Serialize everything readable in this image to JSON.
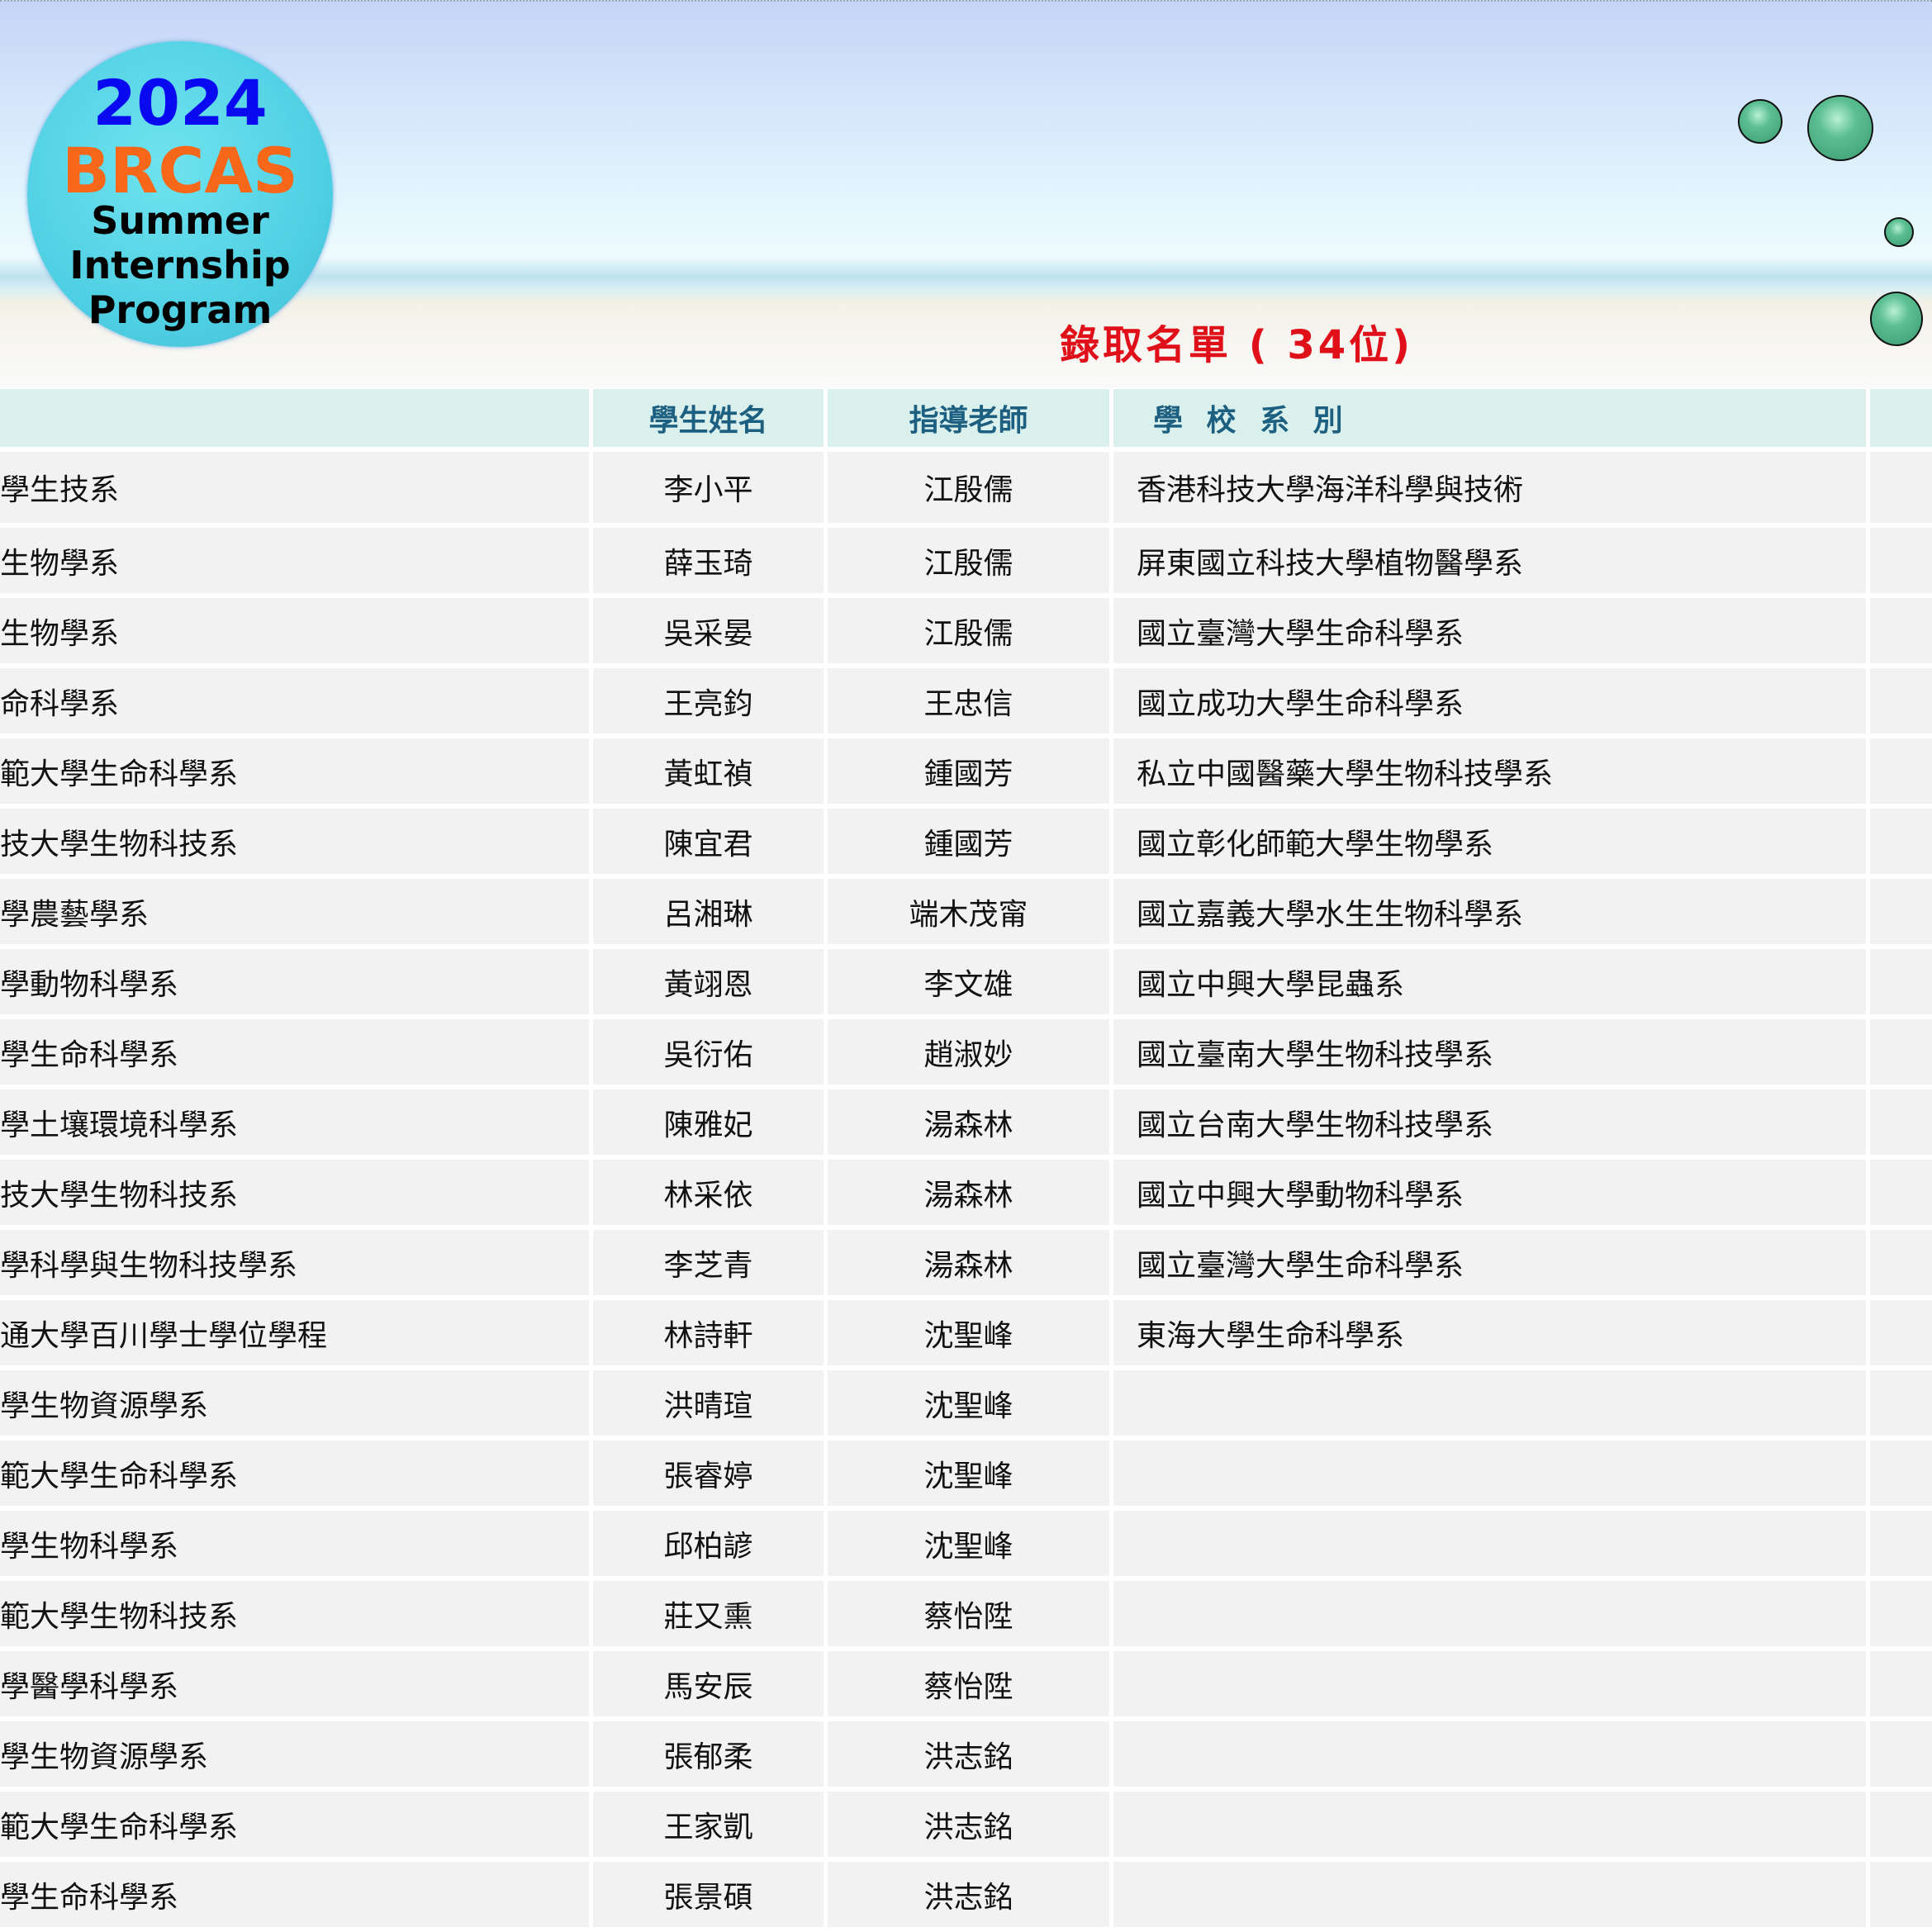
{
  "logo": {
    "year": "2024",
    "org": "BRCAS",
    "line1": "Summer",
    "line2": "Internship",
    "line3": "Program"
  },
  "title": "錄取名單 ( 34位)",
  "table": {
    "headers": [
      "",
      "學生姓名",
      "指導老師",
      "學 校 系 別",
      ""
    ],
    "rows": [
      {
        "left": "學生技系",
        "student": "李小平",
        "advisor": "江殷儒",
        "school": "香港科技大學海洋科學與技術"
      },
      {
        "left": "生物學系",
        "student": "薛玉琦",
        "advisor": "江殷儒",
        "school": "屏東國立科技大學植物醫學系"
      },
      {
        "left": "生物學系",
        "student": "吳采晏",
        "advisor": "江殷儒",
        "school": "國立臺灣大學生命科學系"
      },
      {
        "left": "命科學系",
        "student": "王亮鈞",
        "advisor": "王忠信",
        "school": "國立成功大學生命科學系"
      },
      {
        "left": "範大學生命科學系",
        "student": "黃虹禎",
        "advisor": "鍾國芳",
        "school": "私立中國醫藥大學生物科技學系"
      },
      {
        "left": "技大學生物科技系",
        "student": "陳宜君",
        "advisor": "鍾國芳",
        "school": "國立彰化師範大學生物學系"
      },
      {
        "left": "學農藝學系",
        "student": "呂湘琳",
        "advisor": "端木茂甯",
        "school": "國立嘉義大學水生生物科學系"
      },
      {
        "left": "學動物科學系",
        "student": "黃翊恩",
        "advisor": "李文雄",
        "school": "國立中興大學昆蟲系"
      },
      {
        "left": "學生命科學系",
        "student": "吳衍佑",
        "advisor": "趙淑妙",
        "school": "國立臺南大學生物科技學系"
      },
      {
        "left": "學土壤環境科學系",
        "student": "陳雅妃",
        "advisor": "湯森林",
        "school": "國立台南大學生物科技學系"
      },
      {
        "left": "技大學生物科技系",
        "student": "林采依",
        "advisor": "湯森林",
        "school": "國立中興大學動物科學系"
      },
      {
        "left": "學科學與生物科技學系",
        "student": "李芝青",
        "advisor": "湯森林",
        "school": "國立臺灣大學生命科學系"
      },
      {
        "left": "通大學百川學士學位學程",
        "student": "林詩軒",
        "advisor": "沈聖峰",
        "school": "東海大學生命科學系"
      },
      {
        "left": "學生物資源學系",
        "student": "洪晴瑄",
        "advisor": "沈聖峰",
        "school": ""
      },
      {
        "left": "範大學生命科學系",
        "student": "張睿婷",
        "advisor": "沈聖峰",
        "school": ""
      },
      {
        "left": "學生物科學系",
        "student": "邱柏諺",
        "advisor": "沈聖峰",
        "school": ""
      },
      {
        "left": "範大學生物科技系",
        "student": "莊又熏",
        "advisor": "蔡怡陞",
        "school": ""
      },
      {
        "left": "學醫學科學系",
        "student": "馬安辰",
        "advisor": "蔡怡陞",
        "school": ""
      },
      {
        "left": "學生物資源學系",
        "student": "張郁柔",
        "advisor": "洪志銘",
        "school": ""
      },
      {
        "left": "範大學生命科學系",
        "student": "王家凱",
        "advisor": "洪志銘",
        "school": ""
      },
      {
        "left": "學生命科學系",
        "student": "張景碩",
        "advisor": "洪志銘",
        "school": ""
      }
    ]
  },
  "colors": {
    "title": "#e0101a",
    "header_bg": "#d9f0ec",
    "header_text": "#1d5f80",
    "row_bg": "#f2f2f2",
    "logo_year": "#0a0af0",
    "logo_org": "#f7671a"
  }
}
